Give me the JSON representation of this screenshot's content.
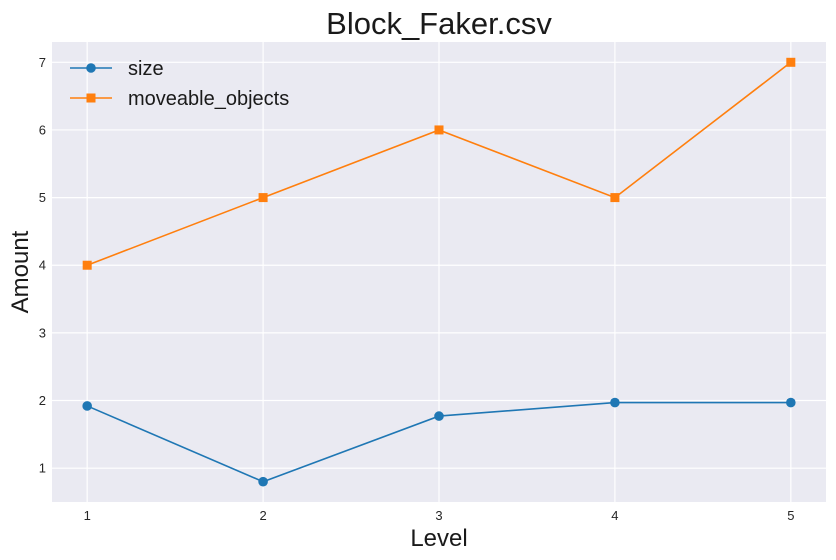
{
  "chart_data": {
    "type": "line",
    "title": "Block_Faker.csv",
    "xlabel": "Level",
    "ylabel": "Amount",
    "x": [
      1,
      2,
      3,
      4,
      5
    ],
    "xlim": [
      0.8,
      5.2
    ],
    "ylim": [
      0.5,
      7.3
    ],
    "xticks": [
      1,
      2,
      3,
      4,
      5
    ],
    "yticks": [
      1,
      2,
      3,
      4,
      5,
      6,
      7
    ],
    "grid": true,
    "legend_position": "top-left",
    "series": [
      {
        "name": "size",
        "values": [
          1.92,
          0.8,
          1.77,
          1.97,
          1.97
        ],
        "color": "#1f77b4",
        "marker": "circle"
      },
      {
        "name": "moveable_objects",
        "values": [
          4,
          5,
          6,
          5,
          7
        ],
        "color": "#ff7f0e",
        "marker": "square"
      }
    ]
  },
  "colors": {
    "plot_background": "#eaeaf2",
    "grid": "#ffffff"
  }
}
